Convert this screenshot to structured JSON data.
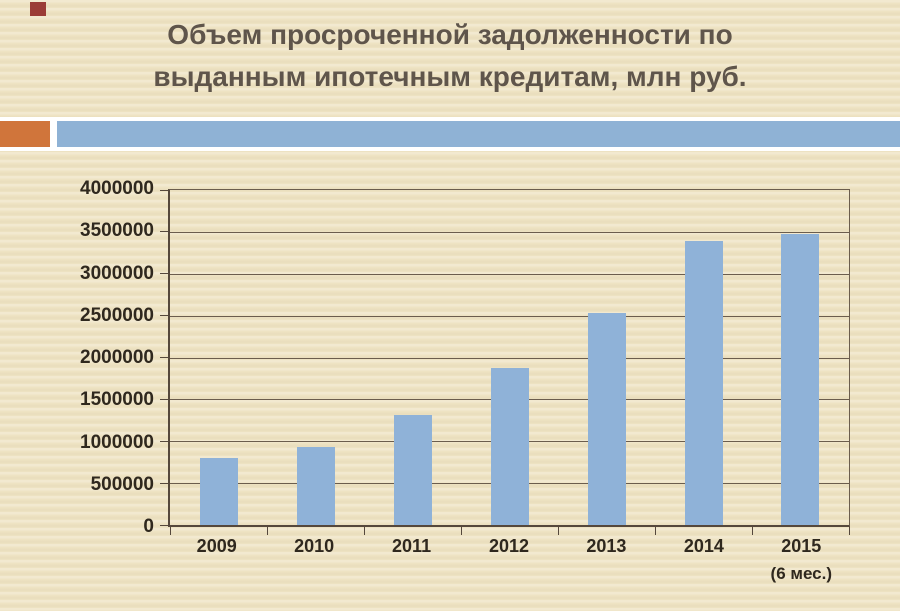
{
  "slide": {
    "title_line1": "Объем просроченной задолженности по",
    "title_line2": "выданным ипотечным кредитам, млн руб."
  },
  "chart_data": {
    "type": "bar",
    "title": "Объем просроченной задолженности по выданным ипотечным кредитам, млн руб.",
    "categories": [
      "2009",
      "2010",
      "2011",
      "2012",
      "2013",
      "2014",
      "2015"
    ],
    "category_notes": [
      "",
      "",
      "",
      "",
      "",
      "",
      "(6 мес.)"
    ],
    "values": [
      800000,
      930000,
      1310000,
      1880000,
      2530000,
      3390000,
      3480000
    ],
    "xlabel": "",
    "ylabel": "",
    "ylim": [
      0,
      4000000
    ],
    "ytick_values": [
      4000000,
      3500000,
      3000000,
      2500000,
      2000000,
      1500000,
      1000000,
      500000,
      0
    ],
    "ytick_labels": [
      "4000000",
      "3500000",
      "3000000",
      "2500000",
      "2000000",
      "1500000",
      "1000000",
      "500000",
      "0"
    ],
    "grid": "horizontal",
    "legend": "none"
  },
  "colors": {
    "background": "#efe4c4",
    "bar": "#8fb2d8",
    "band_blue": "#8fb2d5",
    "band_orange": "#d0753b",
    "corner_square": "#9b3c37",
    "title_text": "#5f554b",
    "axis_text": "#2f281e",
    "gridline": "#6b5d4d",
    "axis_line": "#55483c",
    "band_backing": "#ffffff"
  }
}
